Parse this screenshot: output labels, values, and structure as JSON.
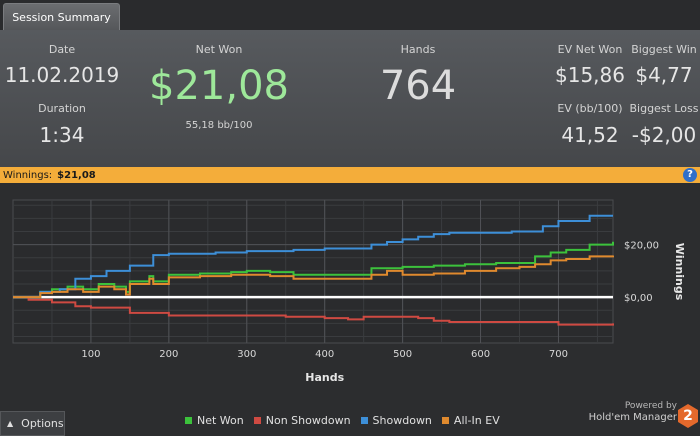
{
  "tab": {
    "label": "Session Summary"
  },
  "stats": {
    "date_label": "Date",
    "date_value": "11.02.2019",
    "duration_label": "Duration",
    "duration_value": "1:34",
    "net_won_label": "Net Won",
    "net_won_value": "$21,08",
    "net_won_sub": "55,18 bb/100",
    "hands_label": "Hands",
    "hands_value": "764",
    "ev_net_won_label": "EV Net Won",
    "ev_net_won_value": "$15,86",
    "biggest_win_label": "Biggest Win",
    "biggest_win_value": "$4,77",
    "ev_bb_label": "EV (bb/100)",
    "ev_bb_value": "41,52",
    "biggest_loss_label": "Biggest Loss",
    "biggest_loss_value": "-$2,00"
  },
  "winnings_bar": {
    "label": "Winnings:",
    "value": "$21,08",
    "help": "?"
  },
  "colors": {
    "net_won": "#3cc23c",
    "non_showdown": "#cf4a42",
    "showdown": "#3d8fd8",
    "all_in_ev": "#e08a2e",
    "winnings_bar": "#f4ad3a",
    "net_won_text": "#9ee89a"
  },
  "chart_data": {
    "type": "line",
    "xlabel": "Hands",
    "ylabel": "Winnings",
    "xlim": [
      0,
      770
    ],
    "ylim": [
      -17.5,
      37
    ],
    "x_ticks": [
      100,
      200,
      300,
      400,
      500,
      600,
      700
    ],
    "y_ticks": [
      0,
      20
    ],
    "y_tick_labels": [
      "$0,00",
      "$20,00"
    ],
    "grid": true,
    "legend_position": "bottom",
    "series": [
      {
        "name": "Net Won",
        "color": "#3cc23c",
        "x": [
          0,
          20,
          35,
          50,
          70,
          90,
          110,
          130,
          145,
          150,
          175,
          180,
          200,
          240,
          280,
          300,
          330,
          360,
          400,
          440,
          460,
          500,
          540,
          580,
          620,
          650,
          670,
          690,
          710,
          740,
          770
        ],
        "y": [
          0,
          0,
          2,
          3,
          4,
          3,
          5,
          4,
          2,
          6,
          8,
          6,
          8.5,
          9,
          9.5,
          10,
          9.5,
          8.5,
          8.5,
          8.5,
          11,
          11.5,
          12,
          12.5,
          13,
          13,
          15.5,
          17,
          18,
          20,
          21.08
        ]
      },
      {
        "name": "Non Showdown",
        "color": "#cf4a42",
        "x": [
          0,
          20,
          50,
          80,
          100,
          150,
          200,
          250,
          300,
          350,
          400,
          430,
          450,
          500,
          520,
          540,
          560,
          600,
          650,
          700,
          740,
          770
        ],
        "y": [
          0,
          -1,
          -2,
          -3.5,
          -4,
          -6,
          -7,
          -7,
          -7,
          -7.5,
          -8,
          -8.5,
          -7.5,
          -7.5,
          -8,
          -9,
          -9.5,
          -9.5,
          -9.5,
          -10.5,
          -10.5,
          -10
        ]
      },
      {
        "name": "Showdown",
        "color": "#3d8fd8",
        "x": [
          0,
          20,
          35,
          60,
          80,
          100,
          120,
          150,
          180,
          200,
          230,
          260,
          300,
          330,
          360,
          400,
          430,
          460,
          480,
          500,
          520,
          540,
          560,
          600,
          640,
          680,
          700,
          740,
          770
        ],
        "y": [
          0,
          0,
          2,
          3,
          7,
          8,
          10,
          12,
          16,
          16.5,
          16.5,
          17,
          17.5,
          17.5,
          18,
          18.5,
          18.5,
          20,
          21,
          22,
          23,
          24,
          24.5,
          24.5,
          25,
          27,
          29,
          31,
          31
        ]
      },
      {
        "name": "All-In EV",
        "color": "#e08a2e",
        "x": [
          0,
          20,
          35,
          50,
          70,
          90,
          110,
          130,
          145,
          150,
          175,
          180,
          200,
          240,
          280,
          300,
          330,
          360,
          400,
          440,
          460,
          480,
          500,
          540,
          580,
          620,
          650,
          670,
          690,
          710,
          740,
          770
        ],
        "y": [
          0,
          0,
          1.5,
          2,
          3,
          2,
          4,
          3,
          1,
          5,
          7,
          5,
          7.5,
          8,
          8.5,
          8.5,
          8,
          7,
          7,
          7,
          8.5,
          10,
          8.5,
          9,
          10,
          11,
          11.5,
          12.5,
          14,
          14.5,
          15.5,
          15.86
        ]
      }
    ]
  },
  "legend": [
    "Net Won",
    "Non Showdown",
    "Showdown",
    "All-In EV"
  ],
  "footer": {
    "options_label": "Options",
    "options_icon": "caret-up-icon",
    "powered_by": "Powered by",
    "product": "Hold'em Manager",
    "logo_text": "2"
  }
}
